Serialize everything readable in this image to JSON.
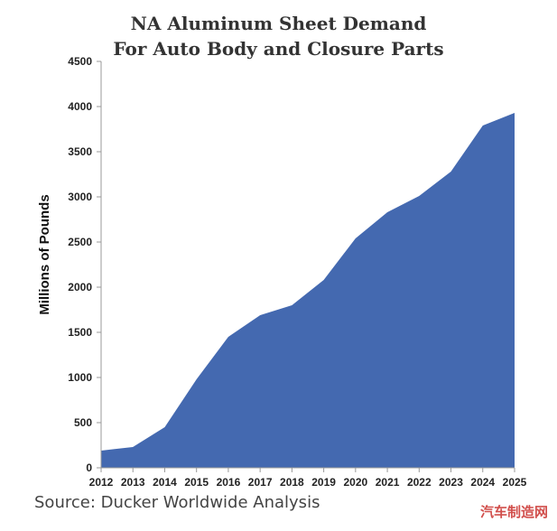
{
  "chart_data": {
    "type": "area",
    "title": "NA Aluminum Sheet Demand",
    "subtitle": "For Auto Body and Closure Parts",
    "xlabel": "",
    "ylabel": "Millions of Pounds",
    "x": [
      "2012",
      "2013",
      "2014",
      "2015",
      "2016",
      "2017",
      "2018",
      "2019",
      "2020",
      "2021",
      "2022",
      "2023",
      "2024",
      "2025"
    ],
    "series": [
      {
        "values": [
          190,
          230,
          450,
          980,
          1450,
          1690,
          1800,
          2080,
          2540,
          2830,
          3010,
          3280,
          3790,
          3930
        ]
      }
    ],
    "ylim": [
      0,
      4500
    ],
    "yticks": [
      0,
      500,
      1000,
      1500,
      2000,
      2500,
      3000,
      3500,
      4000,
      4500
    ],
    "grid": false,
    "legend": "none",
    "fill_color": "#4469b0"
  },
  "source": "Source: Ducker Worldwide Analysis",
  "watermark": "汽车制造网"
}
